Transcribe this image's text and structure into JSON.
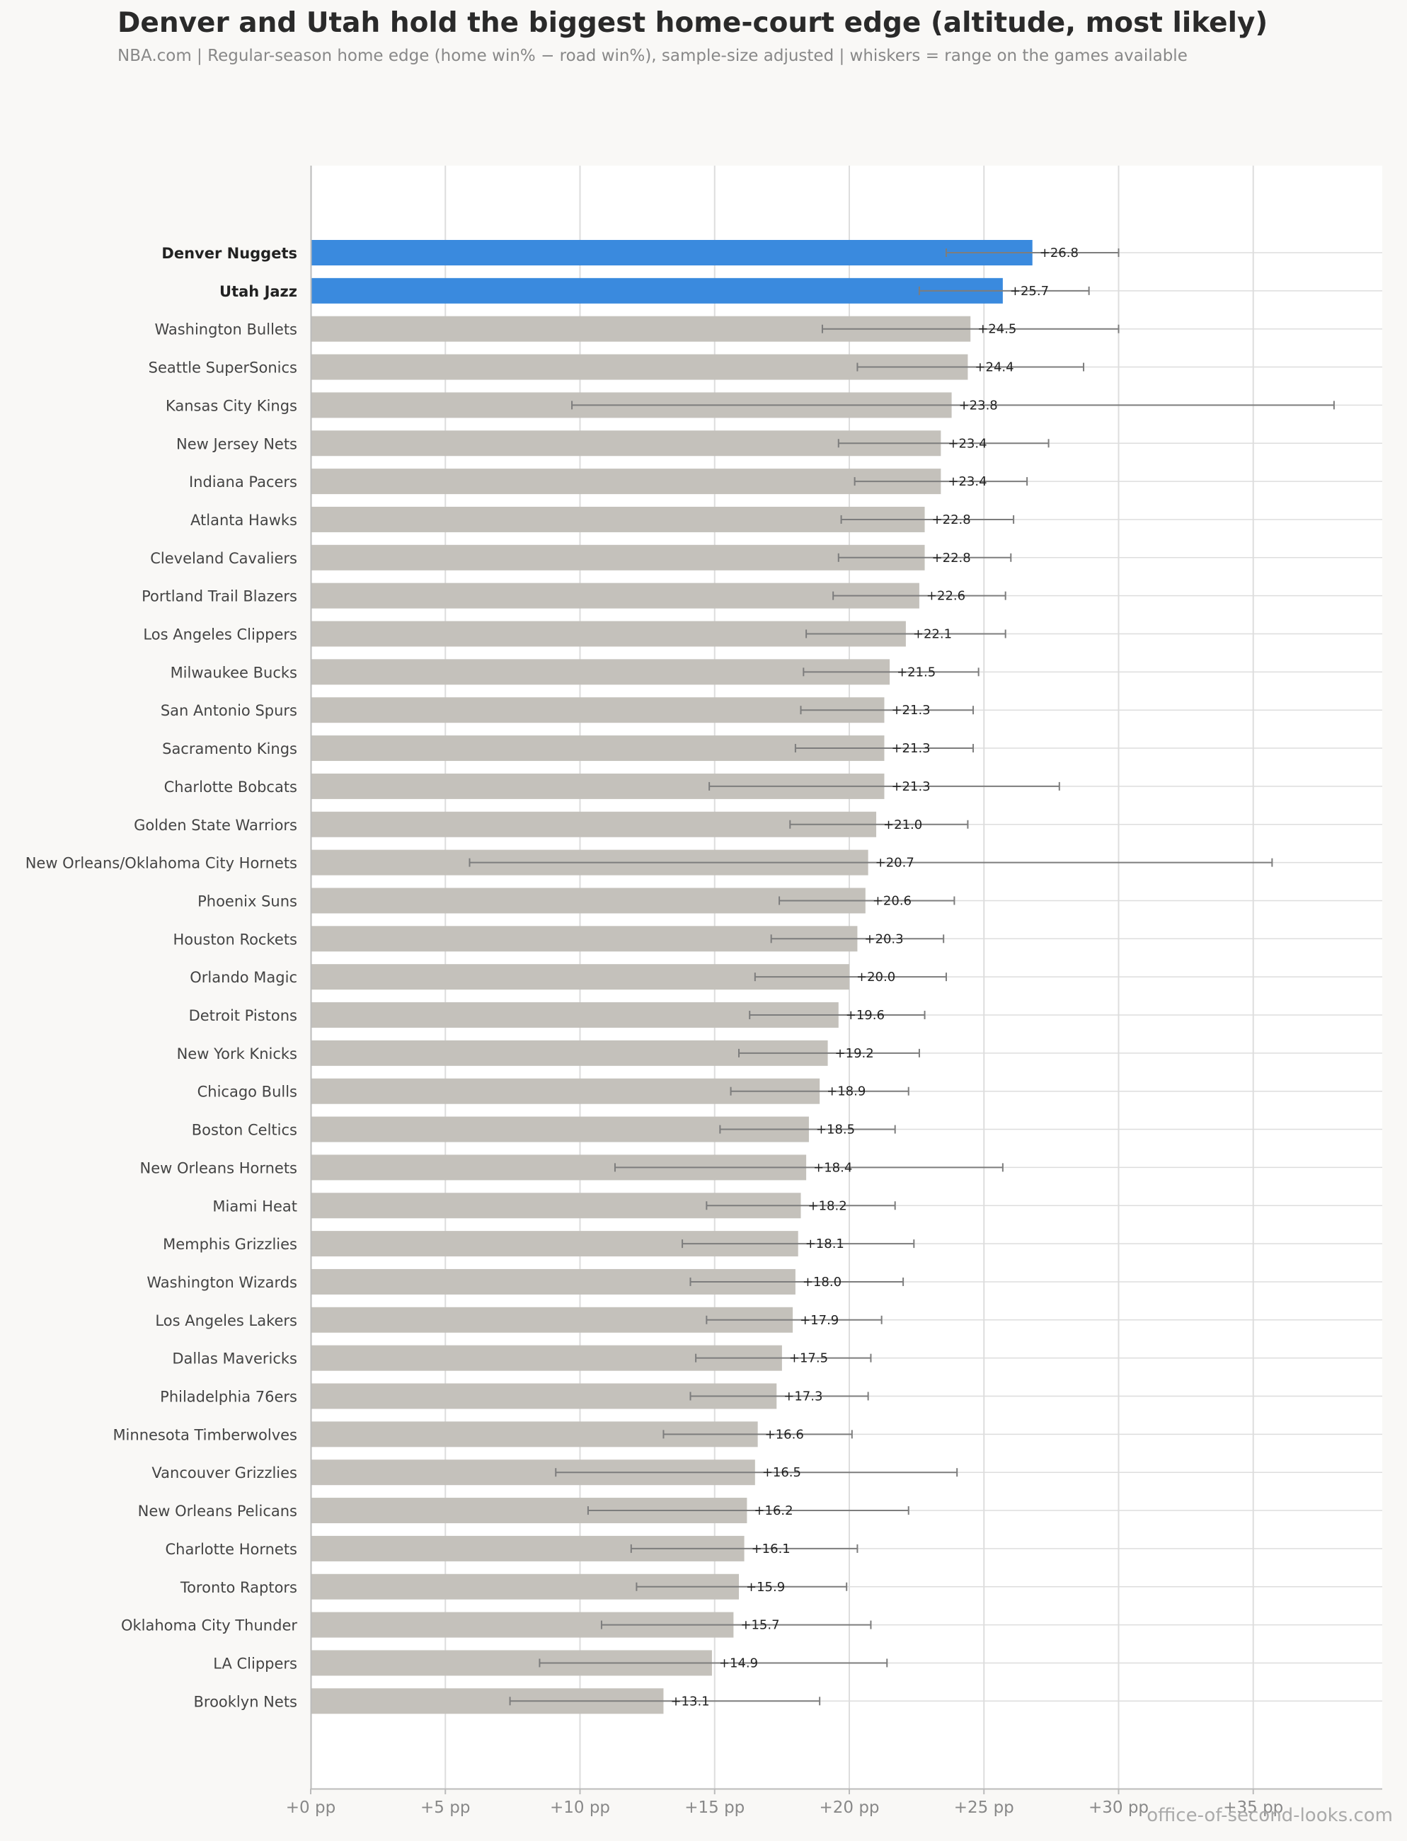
{
  "header": {
    "title": "Denver and Utah hold the biggest home-court edge (altitude, most likely)",
    "subtitle": "NBA.com  |  Regular-season home edge (home win% − road win%), sample-size adjusted  |  whiskers = range on the games available"
  },
  "footer": {
    "credit": "office-of-second-looks.com"
  },
  "colors": {
    "highlight": "#3a8ade",
    "bar": "#c4c1bb",
    "whisker": "#7d7d7d",
    "grid": "#dddddd",
    "plot_bg": "#ffffff",
    "page_bg": "#f9f8f6"
  },
  "chart_data": {
    "type": "bar",
    "orientation": "horizontal",
    "x_tick_labels": [
      "+0 pp",
      "+5 pp",
      "+10 pp",
      "+15 pp",
      "+20 pp",
      "+25 pp",
      "+30 pp",
      "+35 pp"
    ],
    "x_ticks": [
      0,
      5,
      10,
      15,
      20,
      25,
      30,
      35
    ],
    "xlim": [
      0,
      40
    ],
    "grid": true,
    "highlighted": [
      "Denver Nuggets",
      "Utah Jazz"
    ],
    "categories": [
      "Denver Nuggets",
      "Utah Jazz",
      "Washington Bullets",
      "Seattle SuperSonics",
      "Kansas City Kings",
      "New Jersey Nets",
      "Indiana Pacers",
      "Atlanta Hawks",
      "Cleveland Cavaliers",
      "Portland Trail Blazers",
      "Los Angeles Clippers",
      "Milwaukee Bucks",
      "San Antonio Spurs",
      "Sacramento Kings",
      "Charlotte Bobcats",
      "Golden State Warriors",
      "New Orleans/Oklahoma City Hornets",
      "Phoenix Suns",
      "Houston Rockets",
      "Orlando Magic",
      "Detroit Pistons",
      "New York Knicks",
      "Chicago Bulls",
      "Boston Celtics",
      "New Orleans Hornets",
      "Miami Heat",
      "Memphis Grizzlies",
      "Washington Wizards",
      "Los Angeles Lakers",
      "Dallas Mavericks",
      "Philadelphia 76ers",
      "Minnesota Timberwolves",
      "Vancouver Grizzlies",
      "New Orleans Pelicans",
      "Charlotte Hornets",
      "Toronto Raptors",
      "Oklahoma City Thunder",
      "LA Clippers",
      "Brooklyn Nets"
    ],
    "values": [
      26.8,
      25.7,
      24.5,
      24.4,
      23.8,
      23.4,
      23.4,
      22.8,
      22.8,
      22.6,
      22.1,
      21.5,
      21.3,
      21.3,
      21.3,
      21.0,
      20.7,
      20.6,
      20.3,
      20.0,
      19.6,
      19.2,
      18.9,
      18.5,
      18.4,
      18.2,
      18.1,
      18.0,
      17.9,
      17.5,
      17.3,
      16.6,
      16.5,
      16.2,
      16.1,
      15.9,
      15.7,
      14.9,
      13.1
    ],
    "value_labels": [
      "+26.8",
      "+25.7",
      "+24.5",
      "+24.4",
      "+23.8",
      "+23.4",
      "+23.4",
      "+22.8",
      "+22.8",
      "+22.6",
      "+22.1",
      "+21.5",
      "+21.3",
      "+21.3",
      "+21.3",
      "+21.0",
      "+20.7",
      "+20.6",
      "+20.3",
      "+20.0",
      "+19.6",
      "+19.2",
      "+18.9",
      "+18.5",
      "+18.4",
      "+18.2",
      "+18.1",
      "+18.0",
      "+17.9",
      "+17.5",
      "+17.3",
      "+16.6",
      "+16.5",
      "+16.2",
      "+16.1",
      "+15.9",
      "+15.7",
      "+14.9",
      "+13.1"
    ],
    "whisker_low": [
      23.6,
      22.6,
      19.0,
      20.3,
      9.7,
      19.6,
      20.2,
      19.7,
      19.6,
      19.4,
      18.4,
      18.3,
      18.2,
      18.0,
      14.8,
      17.8,
      5.9,
      17.4,
      17.1,
      16.5,
      16.3,
      15.9,
      15.6,
      15.2,
      11.3,
      14.7,
      13.8,
      14.1,
      14.7,
      14.3,
      14.1,
      13.1,
      9.1,
      10.3,
      11.9,
      12.1,
      10.8,
      8.5,
      7.4
    ],
    "whisker_high": [
      30.0,
      28.9,
      30.0,
      28.7,
      38.0,
      27.4,
      26.6,
      26.1,
      26.0,
      25.8,
      25.8,
      24.8,
      24.6,
      24.6,
      27.8,
      24.4,
      35.7,
      23.9,
      23.5,
      23.6,
      22.8,
      22.6,
      22.2,
      21.7,
      25.7,
      21.7,
      22.4,
      22.0,
      21.2,
      20.8,
      20.7,
      20.1,
      24.0,
      22.2,
      20.3,
      19.9,
      20.8,
      21.4,
      18.9
    ]
  }
}
